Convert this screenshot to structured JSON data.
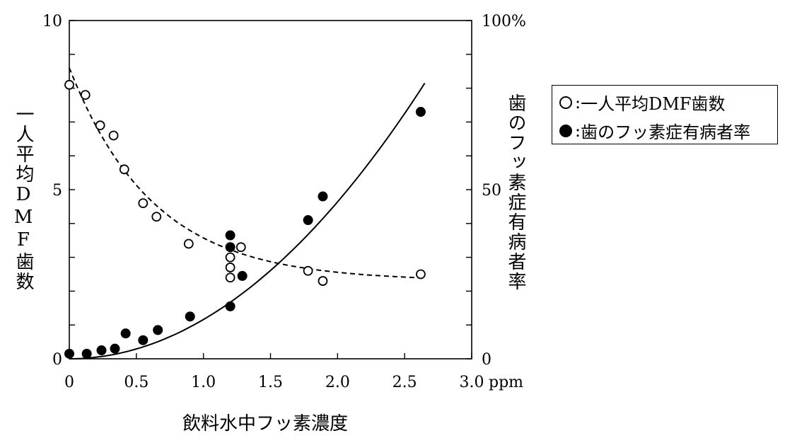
{
  "chart_data": {
    "type": "scatter",
    "xlabel": "飲料水中フッ素濃度",
    "ylabel_left": "一人平均DMF歯数",
    "ylabel_right": "歯のフッ素症有病者率",
    "x_unit": "ppm",
    "xlim": [
      0,
      3.0
    ],
    "ylim_left": [
      0,
      10
    ],
    "ylim_right": [
      0,
      100
    ],
    "x_ticks": [
      "0",
      "0.5",
      "1.0",
      "1.5",
      "2.0",
      "2.5",
      "3.0"
    ],
    "y_left_ticks": [
      "0",
      "5",
      "10"
    ],
    "y_right_ticks": [
      "0",
      "50",
      "100%"
    ],
    "legend_position": "right",
    "series": [
      {
        "name": "一人平均DMF歯数",
        "marker": "open-circle",
        "axis": "left",
        "trend": "dashed",
        "points": [
          [
            0.0,
            8.1
          ],
          [
            0.12,
            7.8
          ],
          [
            0.23,
            6.9
          ],
          [
            0.33,
            6.6
          ],
          [
            0.41,
            5.6
          ],
          [
            0.55,
            4.6
          ],
          [
            0.65,
            4.2
          ],
          [
            0.89,
            3.4
          ],
          [
            1.2,
            3.0
          ],
          [
            1.2,
            2.7
          ],
          [
            1.2,
            2.4
          ],
          [
            1.28,
            3.3
          ],
          [
            1.78,
            2.6
          ],
          [
            1.89,
            2.3
          ],
          [
            2.62,
            2.5
          ]
        ]
      },
      {
        "name": "歯のフッ素症有病者率",
        "marker": "filled-circle",
        "axis": "right",
        "trend": "solid",
        "points": [
          [
            0.0,
            1.5
          ],
          [
            0.13,
            1.5
          ],
          [
            0.24,
            2.5
          ],
          [
            0.34,
            3.0
          ],
          [
            0.42,
            7.5
          ],
          [
            0.55,
            5.5
          ],
          [
            0.66,
            8.5
          ],
          [
            0.9,
            12.5
          ],
          [
            1.2,
            36.5
          ],
          [
            1.2,
            33.0
          ],
          [
            1.29,
            24.5
          ],
          [
            1.2,
            15.5
          ],
          [
            1.78,
            41.0
          ],
          [
            1.89,
            48.0
          ],
          [
            2.62,
            73.0
          ]
        ]
      }
    ]
  }
}
